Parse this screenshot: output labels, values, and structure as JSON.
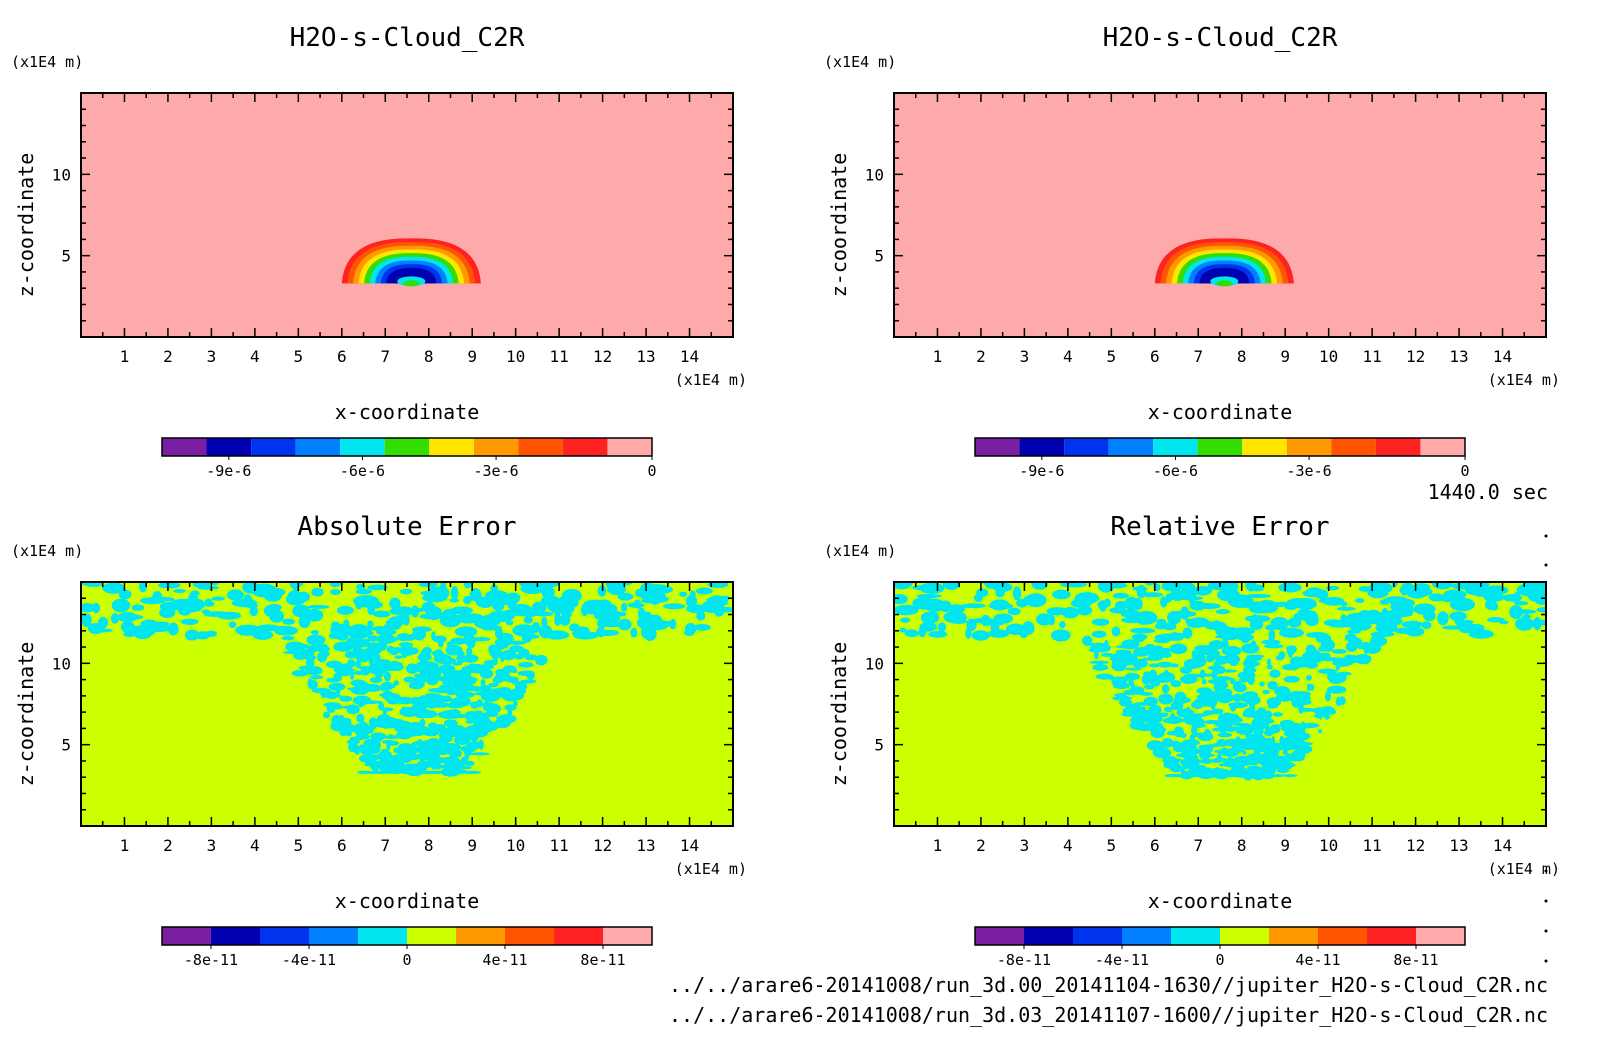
{
  "chart_data": [
    {
      "type": "heatmap",
      "title": "H2O-s-Cloud_C2R",
      "xlabel": "x-coordinate",
      "ylabel": "z-coordinate",
      "x_unit": "(x1E4 m)",
      "y_unit": "(x1E4 m)",
      "xlim": [
        0,
        15
      ],
      "ylim": [
        0,
        15
      ],
      "x_ticks": [
        "1",
        "2",
        "3",
        "4",
        "5",
        "6",
        "7",
        "8",
        "9",
        "10",
        "11",
        "12",
        "13",
        "14"
      ],
      "y_ticks": [
        "5",
        "10"
      ],
      "colorbar": {
        "colors": [
          "#7b1fa2",
          "#0000b0",
          "#0033ee",
          "#0080ff",
          "#00e5ee",
          "#33dd00",
          "#ffe500",
          "#ff9900",
          "#ff5500",
          "#ff2222",
          "#ffaaaa"
        ],
        "tick_labels": [
          "-9e-6",
          "-6e-6",
          "-3e-6",
          "0"
        ]
      },
      "feature": {
        "description_only": false,
        "x_center": 7.6,
        "z_bottom": 3.3,
        "z_top": 5.6,
        "x_left": 6.0,
        "x_right": 9.2,
        "min": -1e-05,
        "background": 0
      }
    },
    {
      "type": "heatmap",
      "title": "H2O-s-Cloud_C2R",
      "xlabel": "x-coordinate",
      "ylabel": "z-coordinate",
      "x_unit": "(x1E4 m)",
      "y_unit": "(x1E4 m)",
      "xlim": [
        0,
        15
      ],
      "ylim": [
        0,
        15
      ],
      "x_ticks": [
        "1",
        "2",
        "3",
        "4",
        "5",
        "6",
        "7",
        "8",
        "9",
        "10",
        "11",
        "12",
        "13",
        "14"
      ],
      "y_ticks": [
        "5",
        "10"
      ],
      "colorbar": {
        "colors": [
          "#7b1fa2",
          "#0000b0",
          "#0033ee",
          "#0080ff",
          "#00e5ee",
          "#33dd00",
          "#ffe500",
          "#ff9900",
          "#ff5500",
          "#ff2222",
          "#ffaaaa"
        ],
        "tick_labels": [
          "-9e-6",
          "-6e-6",
          "-3e-6",
          "0"
        ]
      },
      "feature": {
        "description_only": false,
        "x_center": 7.6,
        "z_bottom": 3.3,
        "z_top": 5.6,
        "x_left": 6.0,
        "x_right": 9.2,
        "min": -1e-05,
        "background": 0
      }
    },
    {
      "type": "heatmap",
      "title": "Absolute Error",
      "xlabel": "x-coordinate",
      "ylabel": "z-coordinate",
      "x_unit": "(x1E4 m)",
      "y_unit": "(x1E4 m)",
      "xlim": [
        0,
        15
      ],
      "ylim": [
        0,
        15
      ],
      "x_ticks": [
        "1",
        "2",
        "3",
        "4",
        "5",
        "6",
        "7",
        "8",
        "9",
        "10",
        "11",
        "12",
        "13",
        "14"
      ],
      "y_ticks": [
        "5",
        "10"
      ],
      "colorbar": {
        "colors": [
          "#7b1fa2",
          "#0000b0",
          "#0033ee",
          "#0080ff",
          "#00e5ee",
          "#ccff00",
          "#ff9900",
          "#ff5500",
          "#ff2222",
          "#ffaaaa"
        ],
        "tick_labels": [
          "-8e-11",
          "-4e-11",
          "0",
          "4e-11",
          "8e-11"
        ]
      },
      "feature": {
        "x_left": 4.5,
        "x_right": 11.0,
        "z_bottom": 3.3,
        "z_top_band": 11.7,
        "background": "0 to 2e-11",
        "speckle": "-2e-11 to 0"
      }
    },
    {
      "type": "heatmap",
      "title": "Relative Error",
      "xlabel": "x-coordinate",
      "ylabel": "z-coordinate",
      "x_unit": "(x1E4 m)",
      "y_unit": "(x1E4 m)",
      "xlim": [
        0,
        15
      ],
      "ylim": [
        0,
        15
      ],
      "x_ticks": [
        "1",
        "2",
        "3",
        "4",
        "5",
        "6",
        "7",
        "8",
        "9",
        "10",
        "11",
        "12",
        "13",
        "14"
      ],
      "y_ticks": [
        "5",
        "10"
      ],
      "colorbar": {
        "colors": [
          "#7b1fa2",
          "#0000b0",
          "#0033ee",
          "#0080ff",
          "#00e5ee",
          "#ccff00",
          "#ff9900",
          "#ff5500",
          "#ff2222",
          "#ffaaaa"
        ],
        "tick_labels": [
          "-8e-11",
          "-4e-11",
          "0",
          "4e-11",
          "8e-11"
        ]
      },
      "feature": {
        "x_left": 4.2,
        "x_right": 11.3,
        "z_bottom": 3.1,
        "z_top_band": 11.7,
        "background": "0 to 2e-11",
        "speckle": "-2e-11 to 0"
      }
    }
  ],
  "time_label": "1440.0 sec",
  "files": [
    "../../arare6-20141008/run_3d.00_20141104-1630//jupiter_H2O-s-Cloud_C2R.nc",
    "../../arare6-20141008/run_3d.03_20141107-1600//jupiter_H2O-s-Cloud_C2R.nc"
  ]
}
